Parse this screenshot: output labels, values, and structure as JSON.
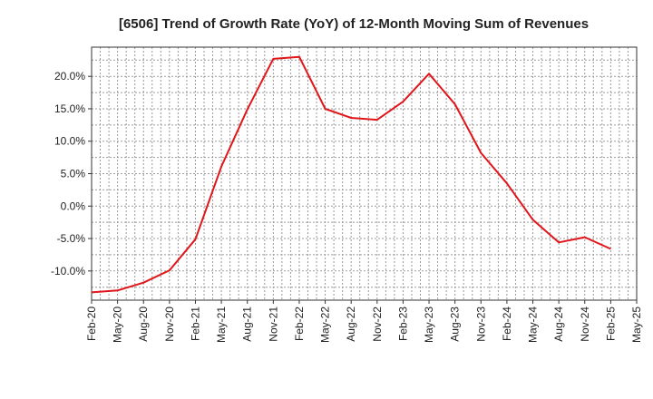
{
  "chart_data": {
    "type": "line",
    "title": "[6506]  Trend of Growth Rate (YoY) of 12-Month Moving Sum of Revenues",
    "xlabel": "",
    "ylabel": "",
    "x_tick_labels": [
      "Feb-20",
      "May-20",
      "Aug-20",
      "Nov-20",
      "Feb-21",
      "May-21",
      "Aug-21",
      "Nov-21",
      "Feb-22",
      "May-22",
      "Aug-22",
      "Nov-22",
      "Feb-23",
      "May-23",
      "Aug-23",
      "Nov-23",
      "Feb-24",
      "May-24",
      "Aug-24",
      "Nov-24",
      "Feb-25",
      "May-25"
    ],
    "y_ticks": [
      20.0,
      15.0,
      10.0,
      5.0,
      0.0,
      -5.0,
      -10.0
    ],
    "y_tick_labels": [
      "20.0%",
      "15.0%",
      "10.0%",
      "5.0%",
      "0.0%",
      "-5.0%",
      "-10.0%"
    ],
    "ylim": [
      -14.5,
      24.5
    ],
    "grid": true,
    "series": [
      {
        "color": "#e0161b",
        "x": [
          "Feb-20",
          "May-20",
          "Aug-20",
          "Nov-20",
          "Feb-21",
          "May-21",
          "Aug-21",
          "Nov-21",
          "Feb-22",
          "May-22",
          "Aug-22",
          "Nov-22",
          "Feb-23",
          "May-23",
          "Aug-23",
          "Nov-23",
          "Feb-24",
          "May-24",
          "Aug-24",
          "Nov-24",
          "Feb-25"
        ],
        "values": [
          -13.3,
          -13.0,
          -11.8,
          -9.9,
          -5.1,
          6.1,
          14.9,
          22.7,
          23.0,
          15.0,
          13.6,
          13.3,
          16.1,
          20.4,
          15.7,
          8.2,
          3.5,
          -2.1,
          -5.6,
          -4.8,
          -6.6
        ]
      }
    ]
  }
}
